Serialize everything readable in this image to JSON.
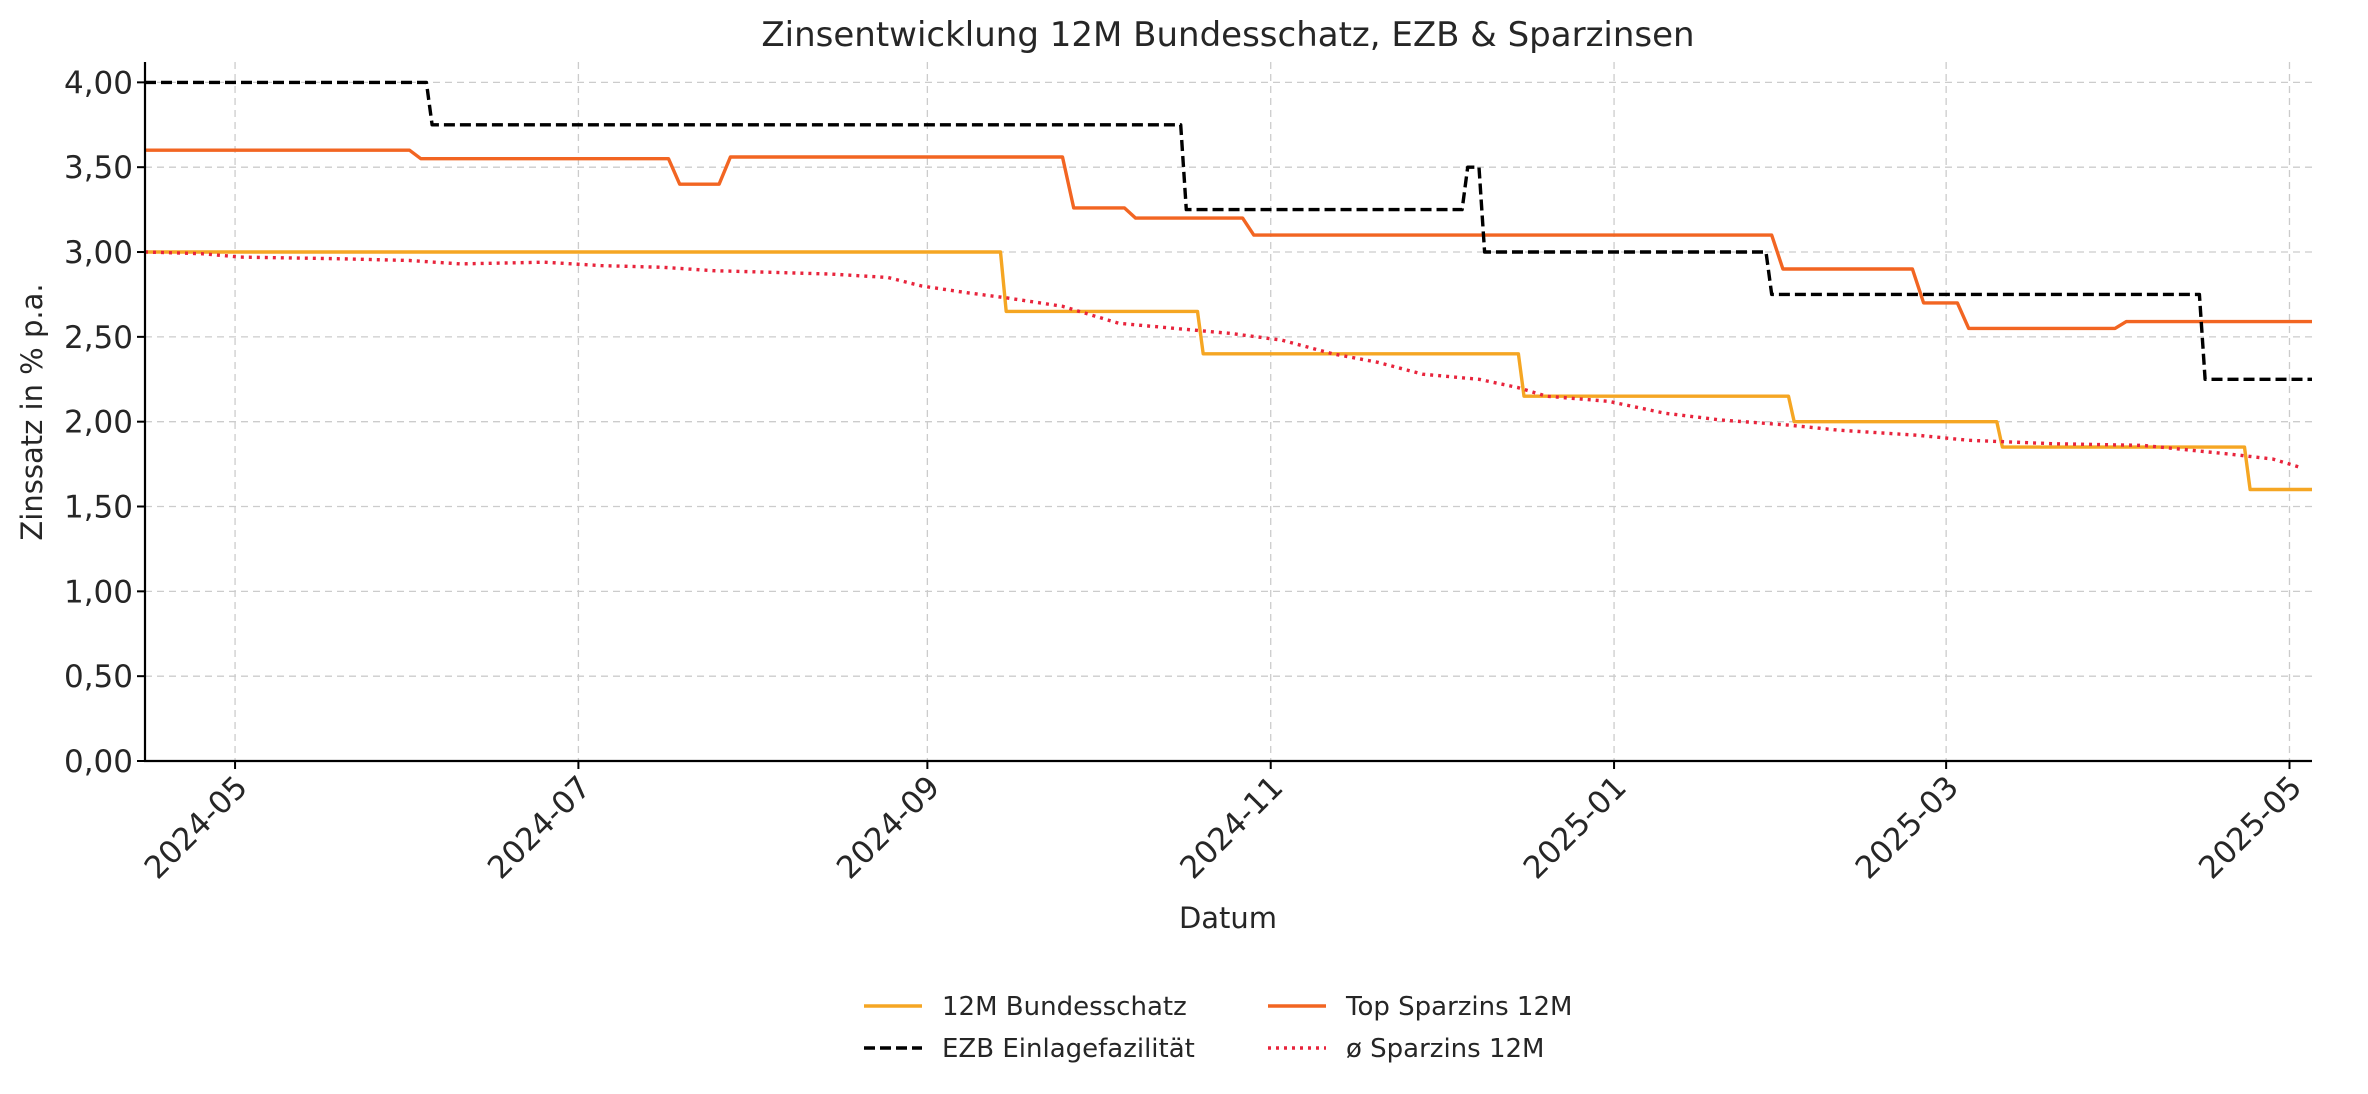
{
  "chart_data": {
    "type": "line",
    "title": "Zinsentwicklung 12M Bundesschatz, EZB & Sparzinsen",
    "xlabel": "Datum",
    "ylabel": "Zinssatz in % p.a.",
    "x_range": [
      "2024-04-15",
      "2025-05-05"
    ],
    "ylim": [
      0,
      4.12
    ],
    "x_ticks": [
      "2024-05",
      "2024-07",
      "2024-09",
      "2024-11",
      "2025-01",
      "2025-03",
      "2025-05"
    ],
    "y_ticks": [
      "0,00",
      "0,50",
      "1,00",
      "1,50",
      "2,00",
      "2,50",
      "3,00",
      "3,50",
      "4,00"
    ],
    "grid": true,
    "legend_position": "bottom-center",
    "series": [
      {
        "name": "12M Bundesschatz",
        "color": "#f5a623",
        "style": "solid",
        "points": [
          [
            "2024-04-15",
            3.0
          ],
          [
            "2024-09-14",
            3.0
          ],
          [
            "2024-09-15",
            2.65
          ],
          [
            "2024-10-19",
            2.65
          ],
          [
            "2024-10-20",
            2.4
          ],
          [
            "2024-12-15",
            2.4
          ],
          [
            "2024-12-16",
            2.15
          ],
          [
            "2025-02-01",
            2.15
          ],
          [
            "2025-02-02",
            2.0
          ],
          [
            "2025-03-10",
            2.0
          ],
          [
            "2025-03-11",
            1.85
          ],
          [
            "2025-04-23",
            1.85
          ],
          [
            "2025-04-24",
            1.6
          ],
          [
            "2025-05-05",
            1.6
          ]
        ]
      },
      {
        "name": "Top Sparzins 12M",
        "color": "#f26522",
        "style": "solid",
        "points": [
          [
            "2024-04-15",
            3.6
          ],
          [
            "2024-06-01",
            3.6
          ],
          [
            "2024-06-03",
            3.55
          ],
          [
            "2024-07-17",
            3.55
          ],
          [
            "2024-07-19",
            3.4
          ],
          [
            "2024-07-26",
            3.4
          ],
          [
            "2024-07-28",
            3.56
          ],
          [
            "2024-09-25",
            3.56
          ],
          [
            "2024-09-27",
            3.26
          ],
          [
            "2024-10-06",
            3.26
          ],
          [
            "2024-10-08",
            3.2
          ],
          [
            "2024-10-27",
            3.2
          ],
          [
            "2024-10-29",
            3.1
          ],
          [
            "2025-01-29",
            3.1
          ],
          [
            "2025-01-31",
            2.9
          ],
          [
            "2025-02-23",
            2.9
          ],
          [
            "2025-02-25",
            2.7
          ],
          [
            "2025-03-03",
            2.7
          ],
          [
            "2025-03-05",
            2.55
          ],
          [
            "2025-03-31",
            2.55
          ],
          [
            "2025-04-02",
            2.59
          ],
          [
            "2025-05-05",
            2.59
          ]
        ]
      },
      {
        "name": "EZB Einlagefazilität",
        "color": "#000000",
        "style": "dashed",
        "points": [
          [
            "2024-04-15",
            4.0
          ],
          [
            "2024-06-04",
            4.0
          ],
          [
            "2024-06-05",
            3.75
          ],
          [
            "2024-10-16",
            3.75
          ],
          [
            "2024-10-17",
            3.25
          ],
          [
            "2024-12-05",
            3.25
          ],
          [
            "2024-12-06",
            3.5
          ],
          [
            "2024-12-08",
            3.5
          ],
          [
            "2024-12-09",
            3.0
          ],
          [
            "2025-01-28",
            3.0
          ],
          [
            "2025-01-29",
            2.75
          ],
          [
            "2025-04-15",
            2.75
          ],
          [
            "2025-04-16",
            2.25
          ],
          [
            "2025-05-05",
            2.25
          ]
        ]
      },
      {
        "name": "ø Sparzins 12M",
        "color": "#e8243c",
        "style": "dotted",
        "points": [
          [
            "2024-04-15",
            3.0
          ],
          [
            "2024-04-25",
            2.99
          ],
          [
            "2024-05-02",
            2.97
          ],
          [
            "2024-05-20",
            2.96
          ],
          [
            "2024-06-01",
            2.95
          ],
          [
            "2024-06-10",
            2.93
          ],
          [
            "2024-06-25",
            2.94
          ],
          [
            "2024-07-05",
            2.92
          ],
          [
            "2024-07-16",
            2.91
          ],
          [
            "2024-07-25",
            2.89
          ],
          [
            "2024-08-05",
            2.88
          ],
          [
            "2024-08-15",
            2.87
          ],
          [
            "2024-08-25",
            2.85
          ],
          [
            "2024-08-31",
            2.8
          ],
          [
            "2024-09-08",
            2.76
          ],
          [
            "2024-09-15",
            2.73
          ],
          [
            "2024-09-25",
            2.68
          ],
          [
            "2024-10-05",
            2.58
          ],
          [
            "2024-10-15",
            2.55
          ],
          [
            "2024-10-25",
            2.52
          ],
          [
            "2024-11-03",
            2.48
          ],
          [
            "2024-11-12",
            2.4
          ],
          [
            "2024-11-20",
            2.35
          ],
          [
            "2024-11-28",
            2.28
          ],
          [
            "2024-12-08",
            2.25
          ],
          [
            "2024-12-15",
            2.2
          ],
          [
            "2024-12-20",
            2.15
          ],
          [
            "2024-12-31",
            2.12
          ],
          [
            "2025-01-10",
            2.05
          ],
          [
            "2025-01-20",
            2.01
          ],
          [
            "2025-02-01",
            1.98
          ],
          [
            "2025-02-10",
            1.95
          ],
          [
            "2025-02-24",
            1.92
          ],
          [
            "2025-03-05",
            1.89
          ],
          [
            "2025-03-20",
            1.87
          ],
          [
            "2025-04-05",
            1.86
          ],
          [
            "2025-04-20",
            1.81
          ],
          [
            "2025-04-28",
            1.78
          ],
          [
            "2025-05-03",
            1.73
          ]
        ]
      }
    ]
  }
}
